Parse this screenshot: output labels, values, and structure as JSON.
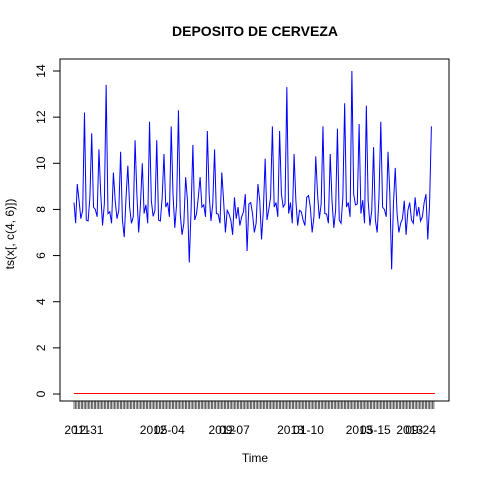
{
  "chart_data": {
    "type": "line",
    "title": "DEPOSITO DE CERVEZA",
    "xlabel": "Time",
    "ylabel": "ts(x[, c(4, 6)])",
    "ylim": [
      0,
      14
    ],
    "yticks": [
      0,
      2,
      4,
      6,
      8,
      10,
      12,
      14
    ],
    "xlim": [
      1,
      1000
    ],
    "x_tick_labels": [
      {
        "x": 10,
        "text": "2011"
      },
      {
        "x": 40,
        "text": "12-31"
      },
      {
        "x": 220,
        "text": "2012"
      },
      {
        "x": 265,
        "text": "05-04"
      },
      {
        "x": 410,
        "text": "2012"
      },
      {
        "x": 445,
        "text": "09-07"
      },
      {
        "x": 600,
        "text": "2013"
      },
      {
        "x": 650,
        "text": "01-10"
      },
      {
        "x": 790,
        "text": "2013"
      },
      {
        "x": 835,
        "text": "05-15"
      },
      {
        "x": 930,
        "text": "2013"
      },
      {
        "x": 960,
        "text": "09-24"
      }
    ],
    "grid": false,
    "series": [
      {
        "color": "#0000ff",
        "x": [
          1,
          10,
          20,
          30,
          40,
          50,
          60,
          70,
          80,
          90,
          100,
          110,
          120,
          130,
          140,
          150,
          160,
          170,
          180,
          190,
          200,
          210,
          220,
          230,
          240,
          250,
          260,
          270,
          280,
          290,
          300,
          310,
          320,
          330,
          340,
          350,
          360,
          370,
          380,
          390,
          400,
          410,
          420,
          430,
          440,
          450,
          460,
          470,
          480,
          490,
          500,
          510,
          520,
          530,
          540,
          550,
          560,
          570,
          580,
          590,
          600,
          610,
          620,
          630,
          640,
          650,
          660,
          670,
          680,
          690,
          700,
          710,
          720,
          730,
          740,
          750,
          760,
          770,
          780,
          790,
          800,
          810,
          820,
          830,
          840,
          850,
          860,
          870,
          880,
          890,
          900,
          910,
          920,
          930,
          940,
          950,
          960,
          970,
          980,
          990
        ],
        "values": [
          8.3,
          9.1,
          7.6,
          12.2,
          7.5,
          11.3,
          8.0,
          10.6,
          7.3,
          13.4,
          7.9,
          9.6,
          7.6,
          10.5,
          6.8,
          9.9,
          7.4,
          11.0,
          7.0,
          10.0,
          8.2,
          11.8,
          7.7,
          11.0,
          7.5,
          10.4,
          8.3,
          11.6,
          7.2,
          12.3,
          6.9,
          9.4,
          5.7,
          10.8,
          7.8,
          9.4,
          8.2,
          11.4,
          7.5,
          10.6,
          7.8,
          9.6,
          7.0,
          7.8,
          6.9,
          7.6,
          7.3,
          7.9,
          6.2,
          8.3,
          7.0,
          9.1,
          6.7,
          10.2,
          8.0,
          11.6,
          8.3,
          11.4,
          8.1,
          13.3,
          8.3,
          10.4,
          7.3,
          7.9,
          7.3,
          8.6,
          7.0,
          10.3,
          7.6,
          11.6,
          7.8,
          10.4,
          7.2,
          11.5,
          7.4,
          12.6,
          8.3,
          14.0,
          8.2,
          11.7,
          8.4,
          12.5,
          7.3,
          10.7,
          7.0,
          11.8,
          8.0,
          10.5,
          5.4,
          9.8,
          7.0,
          7.6,
          6.9,
          8.3,
          7.4,
          7.7,
          7.5,
          8.3,
          6.7,
          11.6
        ],
        "period": 1000
      },
      {
        "color": "#ff0000",
        "values_constant": 0.02
      }
    ]
  }
}
